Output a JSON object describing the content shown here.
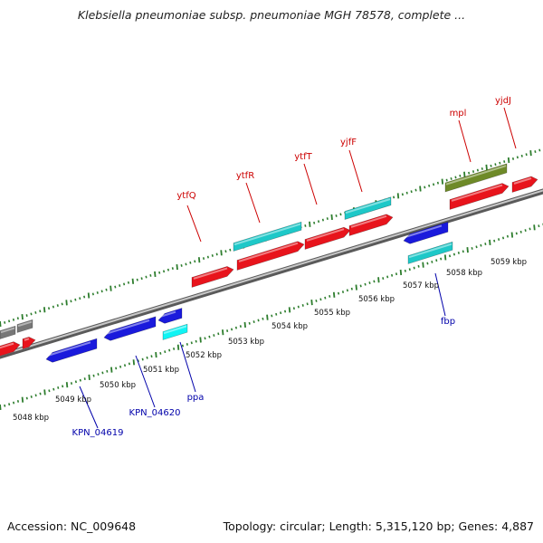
{
  "title": "Klebsiella pneumoniae subsp. pneumoniae MGH 78578, complete ...",
  "footer": {
    "accession": "Accession: NC_009648",
    "summary": "Topology: circular; Length: 5,315,120 bp; Genes: 4,887"
  },
  "colors": {
    "backbone": "#8c8c8c",
    "tick": "#2d7d2d",
    "label_top": "#cc0000",
    "label_bottom": "#0000aa"
  },
  "kbp_labels": [
    "5048 kbp",
    "5049 kbp",
    "5050 kbp",
    "5051 kbp",
    "5052 kbp",
    "5053 kbp",
    "5054 kbp",
    "5055 kbp",
    "5056 kbp",
    "5057 kbp",
    "5058 kbp",
    "5059 kbp"
  ],
  "gene_labels_top": [
    "ytfQ",
    "ytfR",
    "ytfT",
    "yjfF",
    "mpl",
    "yjdJ"
  ],
  "gene_labels_bottom": [
    "KPN_04619",
    "KPN_04620",
    "ppa",
    "fbp"
  ],
  "gene_feature_colors": {
    "red": "#e8141c",
    "cyan": "#1ec8c8",
    "olive": "#6e8a28",
    "blue": "#1a1adc",
    "gray": "#777777",
    "bright_cyan": "#10f4f4"
  }
}
